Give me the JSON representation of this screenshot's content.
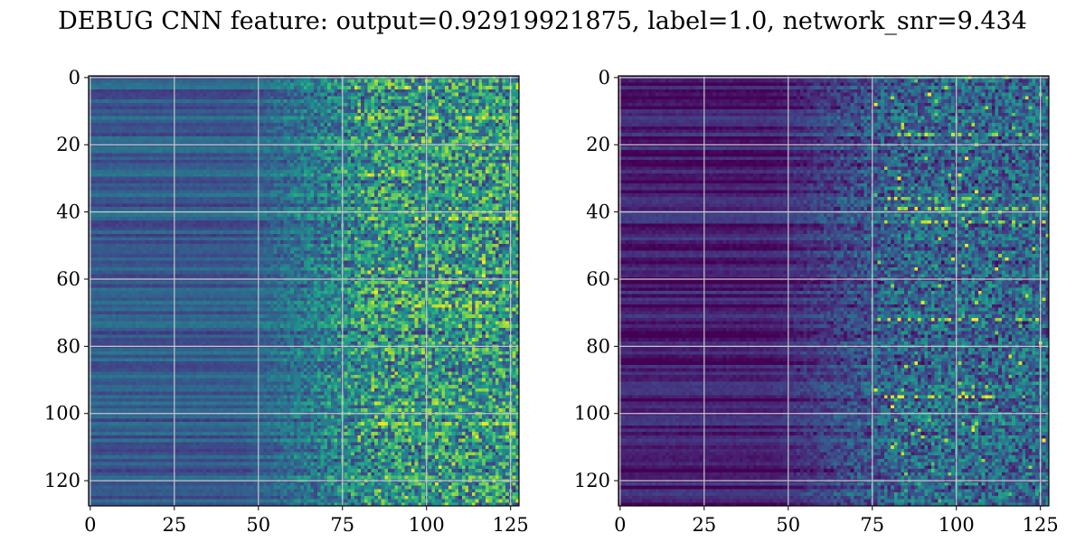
{
  "title": "DEBUG CNN feature: output=0.92919921875, label=1.0, network_snr=9.434",
  "colormap": "viridis",
  "chart_data": [
    {
      "type": "heatmap",
      "panel": "left",
      "rows": 128,
      "cols": 128,
      "xlim": [
        -0.5,
        127.5
      ],
      "ylim": [
        127.5,
        -0.5
      ],
      "xticks": [
        0,
        25,
        50,
        75,
        100,
        125
      ],
      "yticks": [
        0,
        20,
        40,
        60,
        80,
        100,
        120
      ],
      "grid": true,
      "description_pattern": "row-wise horizontal streaks at columns 0-60, increasingly noisy and bright toward columns 75-127; bright spots near rows 3, 60-68 and 103",
      "base_level": 0.28,
      "noise_level": 0.42,
      "hotspot_rows": [
        3,
        12,
        42,
        61,
        64,
        68,
        103
      ]
    },
    {
      "type": "heatmap",
      "panel": "right",
      "rows": 128,
      "cols": 128,
      "xlim": [
        -0.5,
        127.5
      ],
      "ylim": [
        127.5,
        -0.5
      ],
      "xticks": [
        0,
        25,
        50,
        75,
        100,
        125
      ],
      "yticks": [
        0,
        20,
        40,
        60,
        80,
        100,
        120
      ],
      "grid": true,
      "description_pattern": "dark low-valued streaks at columns 0-60, brighter noisy texture from column 75 onward; bright spots near rows 17, 36-43 and 95",
      "base_level": 0.08,
      "noise_level": 0.3,
      "hotspot_rows": [
        17,
        36,
        39,
        43,
        72,
        95
      ]
    }
  ]
}
